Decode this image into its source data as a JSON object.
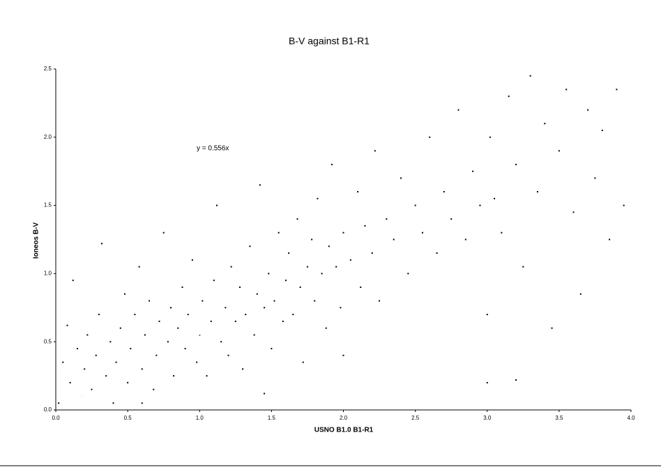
{
  "chart_data": {
    "type": "scatter",
    "title": "B-V against B1-R1",
    "x_label": "USNO B1.0 B1-R1",
    "y_label": "Ioneos B-V",
    "annotation": "y = 0.556x",
    "trendline": {
      "label": "y = 0.556x",
      "slope": 0.556,
      "color": "#ffffff"
    },
    "color": "#000000",
    "xlim": [
      0,
      4
    ],
    "ylim": [
      0,
      2.5
    ],
    "xticks": [
      {
        "value": 0,
        "label": "0.0"
      },
      0.5,
      {
        "value": 1,
        "label": "1.0"
      },
      1.5,
      {
        "value": 2,
        "label": "2.0"
      },
      2.5,
      {
        "value": 3,
        "label": "3.0"
      },
      3.5,
      {
        "value": 4,
        "label": "4.0"
      }
    ],
    "yticks": [
      {
        "value": 0,
        "label": "0.0"
      },
      0.5,
      {
        "value": 1,
        "label": "1.0"
      },
      1.5,
      {
        "value": 2,
        "label": "2.0"
      },
      2.5
    ],
    "x": [
      0.02,
      0.05,
      0.08,
      0.1,
      0.12,
      0.15,
      0.18,
      0.2,
      0.22,
      0.25,
      0.28,
      0.3,
      0.32,
      0.35,
      0.38,
      0.4,
      0.42,
      0.45,
      0.48,
      0.5,
      0.52,
      0.55,
      0.58,
      0.6,
      0.62,
      0.65,
      0.68,
      0.7,
      0.72,
      0.75,
      0.78,
      0.8,
      0.82,
      0.85,
      0.88,
      0.9,
      0.92,
      0.95,
      0.98,
      1.0,
      1.02,
      1.05,
      1.08,
      1.1,
      1.12,
      1.15,
      1.18,
      1.2,
      1.22,
      1.25,
      1.28,
      1.3,
      1.32,
      1.35,
      1.38,
      1.4,
      1.42,
      1.45,
      1.48,
      1.5,
      1.52,
      1.55,
      1.58,
      1.6,
      1.62,
      1.65,
      1.68,
      1.7,
      1.72,
      1.75,
      1.78,
      1.8,
      1.82,
      1.85,
      1.88,
      1.9,
      1.92,
      1.95,
      1.98,
      2.0,
      2.05,
      2.1,
      2.12,
      2.15,
      2.2,
      2.22,
      2.25,
      2.3,
      2.35,
      2.4,
      2.45,
      2.5,
      2.55,
      2.6,
      2.65,
      2.7,
      2.75,
      2.8,
      2.85,
      2.9,
      2.95,
      3.0,
      3.02,
      3.05,
      3.1,
      3.15,
      3.2,
      3.25,
      3.3,
      3.35,
      3.4,
      3.45,
      3.5,
      3.55,
      3.6,
      3.65,
      3.7,
      3.75,
      3.8,
      3.85,
      3.9,
      3.95,
      0.6,
      1.45,
      2.0,
      3.0,
      3.2
    ],
    "y": [
      0.05,
      0.35,
      0.62,
      0.2,
      0.95,
      0.45,
      0.1,
      0.3,
      0.55,
      0.15,
      0.4,
      0.7,
      1.22,
      0.25,
      0.5,
      0.05,
      0.35,
      0.6,
      0.85,
      0.2,
      0.45,
      0.7,
      1.05,
      0.3,
      0.55,
      0.8,
      0.15,
      0.4,
      0.65,
      1.3,
      0.5,
      0.75,
      0.25,
      0.6,
      0.9,
      0.45,
      0.7,
      1.1,
      0.35,
      0.55,
      0.8,
      0.25,
      0.65,
      0.95,
      1.5,
      0.5,
      0.75,
      0.4,
      1.05,
      0.65,
      0.9,
      0.3,
      0.7,
      1.2,
      0.55,
      0.85,
      1.65,
      0.75,
      1.0,
      0.45,
      0.8,
      1.3,
      0.65,
      0.95,
      1.15,
      0.7,
      1.4,
      0.9,
      0.35,
      1.05,
      1.25,
      0.8,
      1.55,
      1.0,
      0.6,
      1.2,
      1.8,
      1.05,
      0.75,
      1.3,
      1.1,
      1.6,
      0.9,
      1.35,
      1.15,
      1.9,
      0.8,
      1.4,
      1.25,
      1.7,
      1.0,
      1.5,
      1.3,
      2.0,
      1.15,
      1.6,
      1.4,
      2.2,
      1.25,
      1.75,
      1.5,
      0.7,
      2.0,
      1.55,
      1.3,
      2.3,
      1.8,
      1.05,
      2.45,
      1.6,
      2.1,
      0.6,
      1.9,
      2.35,
      1.45,
      0.85,
      2.2,
      1.7,
      2.05,
      1.25,
      2.35,
      1.5,
      0.05,
      0.12,
      0.4,
      0.2,
      0.22
    ]
  }
}
